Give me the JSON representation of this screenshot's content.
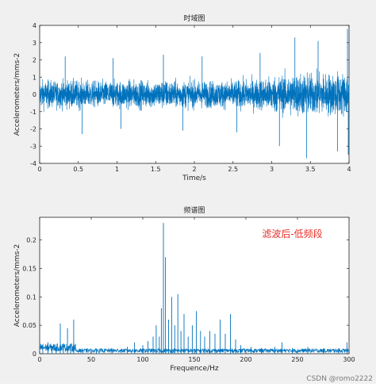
{
  "chart_data": [
    {
      "type": "line",
      "title": "时域图",
      "xlabel": "Time/s",
      "ylabel": "Accelerometers/mms-2",
      "xlim": [
        0,
        4
      ],
      "ylim": [
        -4,
        4
      ],
      "xticks": [
        0,
        0.5,
        1,
        1.5,
        2,
        2.5,
        3,
        3.5,
        4
      ],
      "xtick_labels": [
        "0",
        "0.5",
        "1",
        "1.5",
        "2",
        "2.5",
        "3",
        "3.5",
        "4"
      ],
      "yticks": [
        -4,
        -3,
        -2,
        -1,
        0,
        1,
        2,
        3,
        4
      ],
      "ytick_labels": [
        "-4",
        "-3",
        "-2",
        "-1",
        "0",
        "1",
        "2",
        "3",
        "4"
      ],
      "color": "#0072bd",
      "series": [
        {
          "x": [
            0,
            0.2,
            0.4,
            0.6,
            0.8,
            1.0,
            1.2,
            1.4,
            1.6,
            1.8,
            2.0,
            2.2,
            2.4,
            2.6,
            2.8,
            3.0,
            3.2,
            3.4,
            3.6,
            3.8,
            4.0
          ],
          "envelope_upper": [
            1.6,
            1.5,
            1.6,
            1.5,
            1.5,
            1.5,
            1.6,
            1.5,
            1.6,
            1.5,
            1.5,
            1.5,
            1.5,
            1.6,
            1.7,
            2.0,
            2.3,
            2.4,
            2.3,
            2.4,
            2.5
          ],
          "envelope_lower": [
            -1.6,
            -1.5,
            -1.6,
            -1.5,
            -1.5,
            -1.5,
            -1.6,
            -1.5,
            -1.6,
            -1.5,
            -1.5,
            -1.5,
            -1.5,
            -1.6,
            -1.7,
            -2.0,
            -2.3,
            -2.4,
            -2.3,
            -2.4,
            -2.5
          ],
          "spikes": [
            {
              "x": 0.33,
              "y": 2.2
            },
            {
              "x": 0.55,
              "y": -2.3
            },
            {
              "x": 0.95,
              "y": 2.1
            },
            {
              "x": 1.05,
              "y": -2.0
            },
            {
              "x": 1.6,
              "y": 2.3
            },
            {
              "x": 1.85,
              "y": -2.1
            },
            {
              "x": 2.1,
              "y": 2.2
            },
            {
              "x": 2.55,
              "y": -2.2
            },
            {
              "x": 2.85,
              "y": 2.4
            },
            {
              "x": 3.1,
              "y": -3.0
            },
            {
              "x": 3.3,
              "y": 3.3
            },
            {
              "x": 3.45,
              "y": -3.7
            },
            {
              "x": 3.6,
              "y": 3.1
            },
            {
              "x": 3.85,
              "y": -3.3
            },
            {
              "x": 3.98,
              "y": 3.8
            },
            {
              "x": 3.99,
              "y": -3.5
            }
          ]
        }
      ]
    },
    {
      "type": "line",
      "title": "频谱图",
      "xlabel": "Frequence/Hz",
      "ylabel": "Accelerometers/mms-2",
      "xlim": [
        0,
        300
      ],
      "ylim": [
        0,
        0.24
      ],
      "xticks": [
        0,
        50,
        100,
        150,
        200,
        250,
        300
      ],
      "xtick_labels": [
        "0",
        "50",
        "100",
        "150",
        "200",
        "250",
        "300"
      ],
      "yticks": [
        0,
        0.05,
        0.1,
        0.15,
        0.2
      ],
      "ytick_labels": [
        "0",
        "0.05",
        "0.1",
        "0.15",
        "0.2"
      ],
      "color": "#0072bd",
      "annotation": {
        "text": "滤波后-低频段",
        "x": 245,
        "y": 0.205,
        "color": "#e8302a"
      },
      "series": [
        {
          "baseline": 0.006,
          "peaks": [
            {
              "x": 3,
              "y": 0.016
            },
            {
              "x": 8,
              "y": 0.02
            },
            {
              "x": 12,
              "y": 0.014
            },
            {
              "x": 16,
              "y": 0.012
            },
            {
              "x": 20,
              "y": 0.053
            },
            {
              "x": 23,
              "y": 0.018
            },
            {
              "x": 27,
              "y": 0.045
            },
            {
              "x": 30,
              "y": 0.012
            },
            {
              "x": 33,
              "y": 0.06
            },
            {
              "x": 42,
              "y": 0.008
            },
            {
              "x": 55,
              "y": 0.009
            },
            {
              "x": 70,
              "y": 0.01
            },
            {
              "x": 85,
              "y": 0.012
            },
            {
              "x": 92,
              "y": 0.02
            },
            {
              "x": 100,
              "y": 0.015
            },
            {
              "x": 105,
              "y": 0.022
            },
            {
              "x": 110,
              "y": 0.03
            },
            {
              "x": 113,
              "y": 0.05
            },
            {
              "x": 116,
              "y": 0.03
            },
            {
              "x": 118,
              "y": 0.08
            },
            {
              "x": 120,
              "y": 0.23
            },
            {
              "x": 122,
              "y": 0.17
            },
            {
              "x": 125,
              "y": 0.06
            },
            {
              "x": 128,
              "y": 0.1
            },
            {
              "x": 131,
              "y": 0.05
            },
            {
              "x": 134,
              "y": 0.105
            },
            {
              "x": 137,
              "y": 0.04
            },
            {
              "x": 140,
              "y": 0.07
            },
            {
              "x": 144,
              "y": 0.03
            },
            {
              "x": 148,
              "y": 0.05
            },
            {
              "x": 152,
              "y": 0.075
            },
            {
              "x": 156,
              "y": 0.04
            },
            {
              "x": 160,
              "y": 0.03
            },
            {
              "x": 165,
              "y": 0.04
            },
            {
              "x": 170,
              "y": 0.035
            },
            {
              "x": 175,
              "y": 0.06
            },
            {
              "x": 180,
              "y": 0.035
            },
            {
              "x": 185,
              "y": 0.07
            },
            {
              "x": 190,
              "y": 0.025
            },
            {
              "x": 195,
              "y": 0.015
            },
            {
              "x": 205,
              "y": 0.012
            },
            {
              "x": 215,
              "y": 0.01
            },
            {
              "x": 228,
              "y": 0.012
            },
            {
              "x": 235,
              "y": 0.02
            },
            {
              "x": 245,
              "y": 0.01
            },
            {
              "x": 260,
              "y": 0.012
            },
            {
              "x": 275,
              "y": 0.009
            },
            {
              "x": 290,
              "y": 0.01
            },
            {
              "x": 298,
              "y": 0.02
            }
          ]
        }
      ]
    }
  ],
  "watermark": "CSDN @romo2222"
}
